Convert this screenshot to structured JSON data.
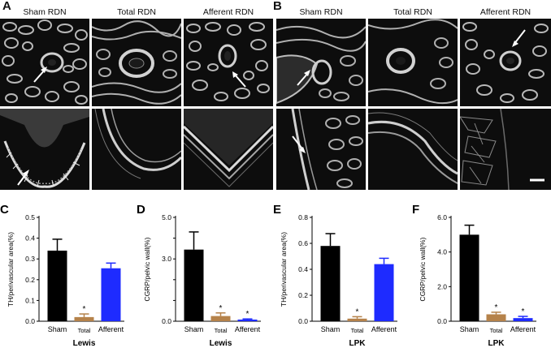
{
  "figure": {
    "panels": {
      "A": {
        "letter": "A",
        "columns": [
          "Sham RDN",
          "Total RDN",
          "Afferent RDN"
        ]
      },
      "B": {
        "letter": "B",
        "columns": [
          "Sham RDN",
          "Total RDN",
          "Afferent RDN"
        ]
      }
    },
    "colors": {
      "sham": "#000000",
      "total": "#b5824a",
      "afferent": "#1e2bff",
      "micrograph_bg": "#0d0d0d",
      "tissue": "#bfbfbf"
    }
  },
  "chart_data": [
    {
      "panel": "C",
      "type": "bar",
      "categories": [
        "Sham",
        "Total",
        "Afferent"
      ],
      "values": [
        0.34,
        0.02,
        0.255
      ],
      "errors": [
        0.055,
        0.015,
        0.025
      ],
      "significance": [
        "",
        "*",
        ""
      ],
      "ylabel": "TH/perivascular area(%)",
      "xlabel": "Lewis",
      "ylim": [
        0,
        0.5
      ],
      "yticks": [
        "0.0",
        "0.1",
        "0.2",
        "0.3",
        "0.4",
        "0.5"
      ],
      "colors": [
        "#000000",
        "#b5824a",
        "#1e2bff"
      ]
    },
    {
      "panel": "D",
      "type": "bar",
      "categories": [
        "Sham",
        "Total",
        "Afferent"
      ],
      "values": [
        3.45,
        0.25,
        0.08
      ],
      "errors": [
        0.85,
        0.15,
        0.03
      ],
      "significance": [
        "",
        "*",
        "*"
      ],
      "ylabel": "CGRP/pelvic wall(%)",
      "xlabel": "Lewis",
      "ylim": [
        0,
        5.0
      ],
      "yticks": [
        "0.0",
        "",
        "",
        "3.0",
        "",
        "5.0"
      ],
      "colors": [
        "#000000",
        "#b5824a",
        "#1e2bff"
      ]
    },
    {
      "panel": "E",
      "type": "bar",
      "categories": [
        "Sham",
        "Total",
        "Afferent"
      ],
      "values": [
        0.58,
        0.02,
        0.44
      ],
      "errors": [
        0.095,
        0.015,
        0.045
      ],
      "significance": [
        "",
        "*",
        ""
      ],
      "ylabel": "TH/perivascular area(%)",
      "xlabel": "LPK",
      "ylim": [
        0,
        0.8
      ],
      "yticks": [
        "0.0",
        "0.2",
        "0.4",
        "0.6",
        "0.8"
      ],
      "colors": [
        "#000000",
        "#b5824a",
        "#1e2bff"
      ]
    },
    {
      "panel": "F",
      "type": "bar",
      "categories": [
        "Sham",
        "Total",
        "Afferent"
      ],
      "values": [
        5.0,
        0.4,
        0.18
      ],
      "errors": [
        0.55,
        0.12,
        0.1
      ],
      "significance": [
        "",
        "*",
        "*"
      ],
      "ylabel": "CGRP/pelvic wall(%)",
      "xlabel": "LPK",
      "ylim": [
        0,
        6.0
      ],
      "yticks": [
        "0.0",
        "2.0",
        "4.0",
        "6.0"
      ],
      "colors": [
        "#000000",
        "#b5824a",
        "#1e2bff"
      ]
    }
  ]
}
